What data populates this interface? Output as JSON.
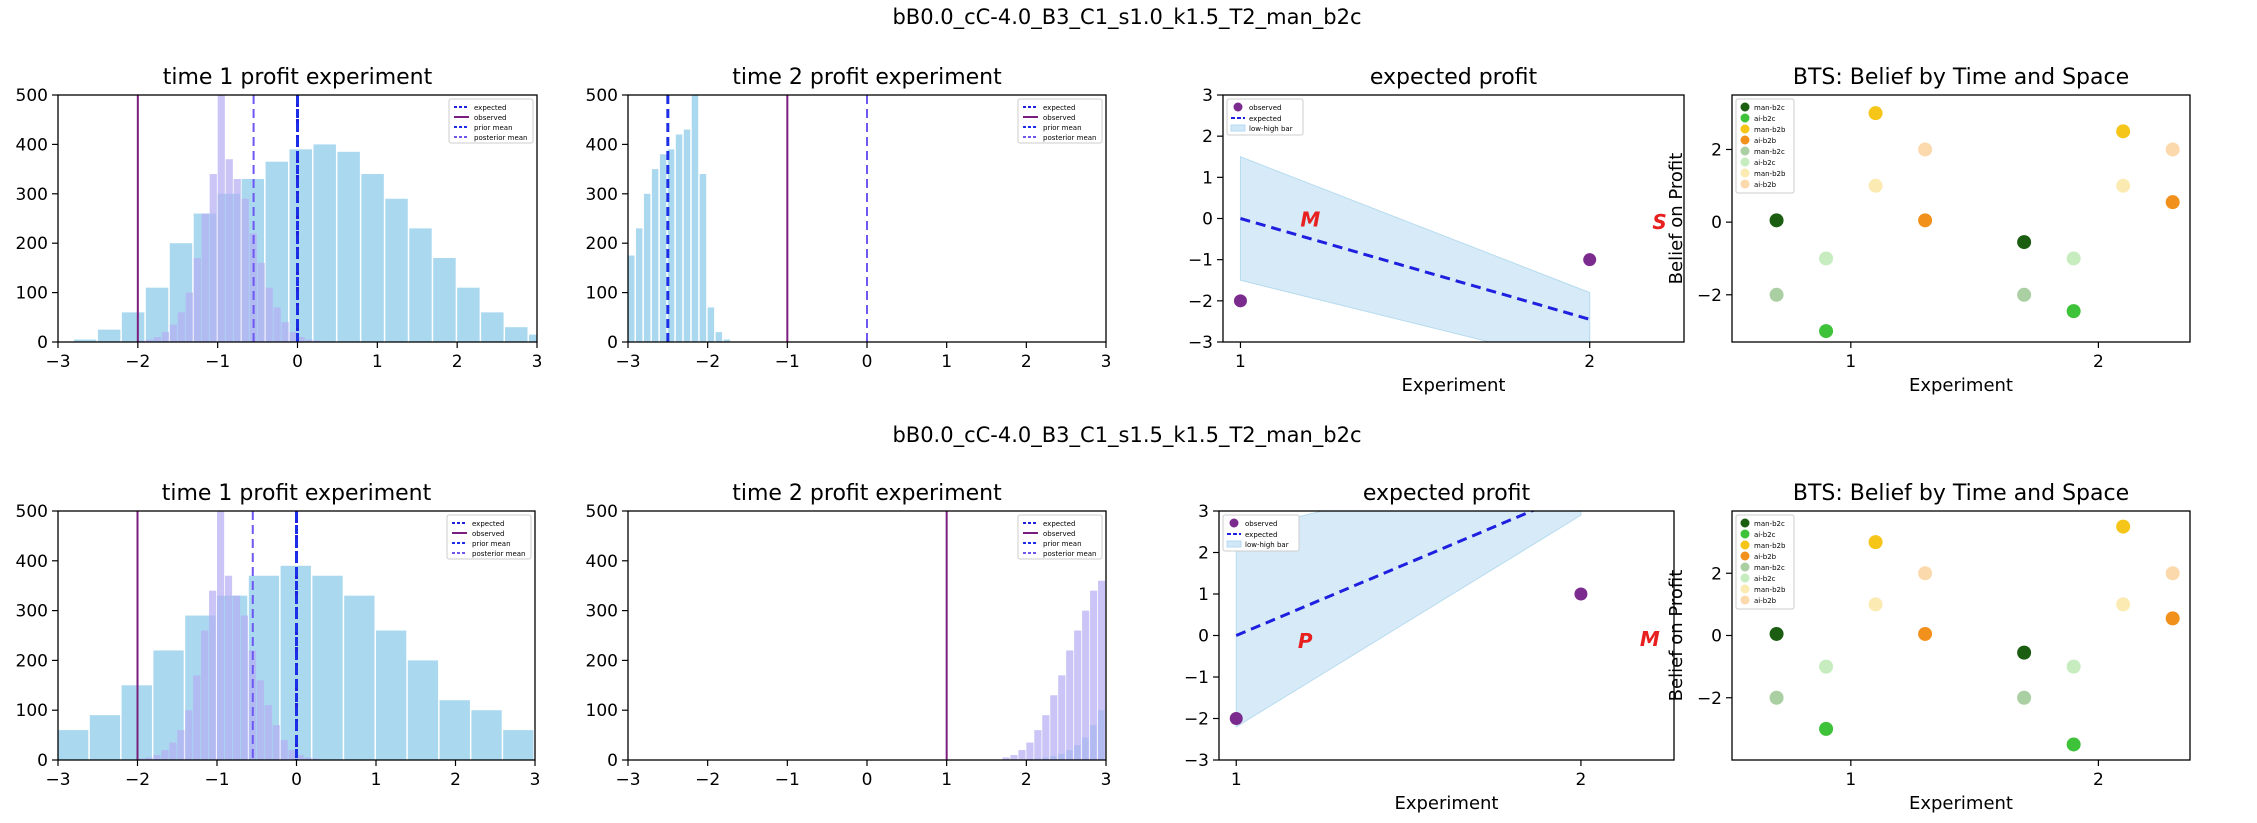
{
  "suptitles": [
    "bB0.0_cC-4.0_B3_C1_s1.0_k1.5_T2_man_b2c",
    "bB0.0_cC-4.0_B3_C1_s1.5_k1.5_T2_man_b2c"
  ],
  "colors": {
    "hist_light": "#a9d8ef",
    "hist_purple": "#b5aef2",
    "expected_line": "#1f1fe0",
    "observed_line": "#7b1f7e",
    "prior_line": "#1c2fe6",
    "posterior_line": "#6d58f2",
    "band": "#cfe7f6",
    "observed_dot": "#7b2a8e",
    "letter": "#e82020"
  },
  "chart_data": [
    {
      "type": "bar",
      "title": "time 1 profit experiment",
      "xlim": [
        -3,
        3
      ],
      "ylim": [
        0,
        500
      ],
      "xticks": [
        "−3",
        "−2",
        "−1",
        "0",
        "1",
        "2",
        "3"
      ],
      "yticks": [
        "0",
        "100",
        "200",
        "300",
        "400",
        "500"
      ],
      "bin_width_light": 0.3,
      "light_bin_start": -2.8,
      "light_values": [
        5,
        25,
        60,
        110,
        200,
        260,
        300,
        330,
        365,
        390,
        400,
        385,
        340,
        290,
        230,
        170,
        110,
        60,
        30,
        15
      ],
      "purple_bin_width": 0.1,
      "purple_bin_start": -2.0,
      "purple_values": [
        3,
        5,
        10,
        20,
        35,
        60,
        100,
        170,
        260,
        340,
        500,
        370,
        330,
        290,
        220,
        160,
        110,
        70,
        40,
        20,
        10,
        5,
        3
      ],
      "vlines": [
        {
          "x": 0.0,
          "kind": "expected"
        },
        {
          "x": -2.0,
          "kind": "observed"
        },
        {
          "x": 0.0,
          "kind": "prior"
        },
        {
          "x": -0.55,
          "kind": "posterior"
        }
      ],
      "legend": [
        "expected",
        "observed",
        "prior mean",
        "posterior mean"
      ]
    },
    {
      "type": "bar",
      "title": "time 2 profit experiment",
      "xlim": [
        -3,
        3
      ],
      "ylim": [
        0,
        500
      ],
      "xticks": [
        "−3",
        "−2",
        "−1",
        "0",
        "1",
        "2",
        "3"
      ],
      "yticks": [
        "0",
        "100",
        "200",
        "300",
        "400",
        "500"
      ],
      "bin_width_light": 0.1,
      "light_bin_start": -3.0,
      "light_values": [
        175,
        230,
        300,
        350,
        380,
        390,
        420,
        430,
        500,
        340,
        70,
        20,
        5
      ],
      "purple_bin_width": 0.1,
      "purple_bin_start": -3.0,
      "purple_values": [],
      "vlines": [
        {
          "x": -2.5,
          "kind": "prior"
        },
        {
          "x": -1.0,
          "kind": "observed"
        },
        {
          "x": 0.0,
          "kind": "posterior"
        }
      ],
      "legend": [
        "expected",
        "observed",
        "prior mean",
        "posterior mean"
      ]
    },
    {
      "type": "line",
      "title": "expected profit",
      "xlabel": "Experiment",
      "xlim": [
        0.95,
        2.27
      ],
      "ylim": [
        -3,
        3
      ],
      "xticks": [
        "1",
        "2"
      ],
      "yticks": [
        "−3",
        "−2",
        "−1",
        "0",
        "1",
        "2",
        "3"
      ],
      "expected": [
        [
          1,
          0
        ],
        [
          2,
          -2.45
        ]
      ],
      "band_low": [
        [
          1,
          -1.5
        ],
        [
          2,
          -3.6
        ]
      ],
      "band_high": [
        [
          1,
          1.5
        ],
        [
          2,
          -1.8
        ]
      ],
      "observed": [
        [
          1,
          -2
        ],
        [
          2,
          -1
        ]
      ],
      "letters": [
        {
          "text": "M",
          "x": 1.2,
          "y": -0.2
        },
        {
          "text": "S",
          "x": 2.2,
          "y": -0.25
        }
      ],
      "legend": [
        "observed",
        "expected",
        "low-high bar"
      ]
    },
    {
      "type": "scatter",
      "title": "BTS: Belief by Time and Space",
      "xlabel": "Experiment",
      "ylabel": "Belief on Profit",
      "xlim": [
        0.52,
        2.37
      ],
      "ylim": [
        -3.3,
        3.5
      ],
      "xticks": [
        "1",
        "2"
      ],
      "yticks": [
        "−2",
        "0",
        "2"
      ],
      "points": [
        {
          "x": 0.7,
          "y": 0.05,
          "series": 0
        },
        {
          "x": 0.9,
          "y": -3.0,
          "series": 1
        },
        {
          "x": 1.1,
          "y": 3.0,
          "series": 2
        },
        {
          "x": 1.3,
          "y": 0.05,
          "series": 3
        },
        {
          "x": 0.7,
          "y": -2.0,
          "series": 4
        },
        {
          "x": 0.9,
          "y": -1.0,
          "series": 5
        },
        {
          "x": 1.1,
          "y": 1.0,
          "series": 6
        },
        {
          "x": 1.3,
          "y": 2.0,
          "series": 7
        },
        {
          "x": 1.7,
          "y": -0.55,
          "series": 0
        },
        {
          "x": 1.9,
          "y": -2.45,
          "series": 1
        },
        {
          "x": 2.1,
          "y": 2.5,
          "series": 2
        },
        {
          "x": 2.3,
          "y": 0.55,
          "series": 3
        },
        {
          "x": 1.7,
          "y": -2.0,
          "series": 4
        },
        {
          "x": 1.9,
          "y": -1.0,
          "series": 5
        },
        {
          "x": 2.1,
          "y": 1.0,
          "series": 6
        },
        {
          "x": 2.3,
          "y": 2.0,
          "series": 7
        }
      ],
      "series": [
        {
          "name": "man-b2c",
          "color": "#1b5e12"
        },
        {
          "name": "ai-b2c",
          "color": "#3ec23a"
        },
        {
          "name": "man-b2b",
          "color": "#f5c518"
        },
        {
          "name": "ai-b2b",
          "color": "#f2901c"
        },
        {
          "name": "man-b2c",
          "color": "#a9cfa2"
        },
        {
          "name": "ai-b2c",
          "color": "#c6ecc0"
        },
        {
          "name": "man-b2b",
          "color": "#fbeab2"
        },
        {
          "name": "ai-b2b",
          "color": "#fbd9ac"
        }
      ]
    },
    {
      "type": "bar",
      "title": "time 1 profit experiment",
      "xlim": [
        -3,
        3
      ],
      "ylim": [
        0,
        500
      ],
      "xticks": [
        "−3",
        "−2",
        "−1",
        "0",
        "1",
        "2",
        "3"
      ],
      "yticks": [
        "0",
        "100",
        "200",
        "300",
        "400",
        "500"
      ],
      "bin_width_light": 0.4,
      "light_bin_start": -3.0,
      "light_values": [
        60,
        90,
        150,
        220,
        290,
        330,
        370,
        390,
        370,
        330,
        260,
        200,
        120,
        100,
        60
      ],
      "purple_bin_width": 0.1,
      "purple_bin_start": -2.0,
      "purple_values": [
        3,
        5,
        10,
        20,
        35,
        60,
        100,
        170,
        260,
        340,
        500,
        370,
        330,
        290,
        220,
        160,
        110,
        70,
        40,
        20,
        10,
        5,
        3
      ],
      "vlines": [
        {
          "x": 0.0,
          "kind": "expected"
        },
        {
          "x": -2.0,
          "kind": "observed"
        },
        {
          "x": 0.0,
          "kind": "prior"
        },
        {
          "x": -0.55,
          "kind": "posterior"
        }
      ],
      "legend": [
        "expected",
        "observed",
        "prior mean",
        "posterior mean"
      ]
    },
    {
      "type": "bar",
      "title": "time 2 profit experiment",
      "xlim": [
        -3,
        3
      ],
      "ylim": [
        0,
        500
      ],
      "xticks": [
        "−3",
        "−2",
        "−1",
        "0",
        "1",
        "2",
        "3"
      ],
      "yticks": [
        "0",
        "100",
        "200",
        "300",
        "400",
        "500"
      ],
      "bin_width_light": 0.1,
      "light_bin_start": 2.0,
      "light_values": [
        2,
        3,
        5,
        8,
        12,
        20,
        30,
        45,
        70,
        100
      ],
      "purple_bin_width": 0.1,
      "purple_bin_start": 1.7,
      "purple_values": [
        5,
        10,
        20,
        35,
        60,
        90,
        130,
        170,
        220,
        260,
        300,
        340,
        360
      ],
      "vlines": [
        {
          "x": 1.0,
          "kind": "observed"
        }
      ],
      "legend": [
        "expected",
        "observed",
        "prior mean",
        "posterior mean"
      ]
    },
    {
      "type": "line",
      "title": "expected profit",
      "xlabel": "Experiment",
      "xlim": [
        0.95,
        2.27
      ],
      "ylim": [
        -3,
        3
      ],
      "xticks": [
        "1",
        "2"
      ],
      "yticks": [
        "−3",
        "−2",
        "−1",
        "0",
        "1",
        "2",
        "3"
      ],
      "expected": [
        [
          1,
          0
        ],
        [
          2,
          3.5
        ]
      ],
      "band_low": [
        [
          1,
          -2.2
        ],
        [
          2,
          2.9
        ]
      ],
      "band_high": [
        [
          1,
          2.5
        ],
        [
          2,
          4.5
        ]
      ],
      "observed": [
        [
          1,
          -2
        ],
        [
          2,
          1
        ]
      ],
      "letters": [
        {
          "text": "P",
          "x": 1.2,
          "y": -0.3
        },
        {
          "text": "M",
          "x": 2.2,
          "y": -0.25
        }
      ],
      "legend": [
        "observed",
        "expected",
        "low-high bar"
      ]
    },
    {
      "type": "scatter",
      "title": "BTS: Belief by Time and Space",
      "xlabel": "Experiment",
      "ylabel": "Belief on Profit",
      "xlim": [
        0.52,
        2.37
      ],
      "ylim": [
        -4.0,
        4.0
      ],
      "xticks": [
        "1",
        "2"
      ],
      "yticks": [
        "−2",
        "0",
        "2"
      ],
      "points": [
        {
          "x": 0.7,
          "y": 0.05,
          "series": 0
        },
        {
          "x": 0.9,
          "y": -3.0,
          "series": 1
        },
        {
          "x": 1.1,
          "y": 3.0,
          "series": 2
        },
        {
          "x": 1.3,
          "y": 0.05,
          "series": 3
        },
        {
          "x": 0.7,
          "y": -2.0,
          "series": 4
        },
        {
          "x": 0.9,
          "y": -1.0,
          "series": 5
        },
        {
          "x": 1.1,
          "y": 1.0,
          "series": 6
        },
        {
          "x": 1.3,
          "y": 2.0,
          "series": 7
        },
        {
          "x": 1.7,
          "y": -0.55,
          "series": 0
        },
        {
          "x": 1.9,
          "y": -3.5,
          "series": 1
        },
        {
          "x": 2.1,
          "y": 3.5,
          "series": 2
        },
        {
          "x": 2.3,
          "y": 0.55,
          "series": 3
        },
        {
          "x": 1.7,
          "y": -2.0,
          "series": 4
        },
        {
          "x": 1.9,
          "y": -1.0,
          "series": 5
        },
        {
          "x": 2.1,
          "y": 1.0,
          "series": 6
        },
        {
          "x": 2.3,
          "y": 2.0,
          "series": 7
        }
      ],
      "series": [
        {
          "name": "man-b2c",
          "color": "#1b5e12"
        },
        {
          "name": "ai-b2c",
          "color": "#3ec23a"
        },
        {
          "name": "man-b2b",
          "color": "#f5c518"
        },
        {
          "name": "ai-b2b",
          "color": "#f2901c"
        },
        {
          "name": "man-b2c",
          "color": "#a9cfa2"
        },
        {
          "name": "ai-b2c",
          "color": "#c6ecc0"
        },
        {
          "name": "man-b2b",
          "color": "#fbeab2"
        },
        {
          "name": "ai-b2b",
          "color": "#fbd9ac"
        }
      ]
    }
  ]
}
